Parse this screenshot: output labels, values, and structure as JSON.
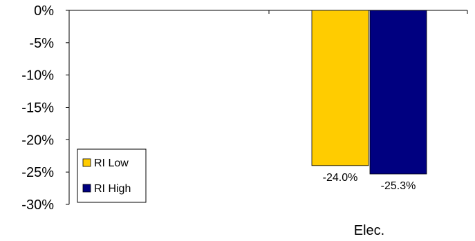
{
  "chart_data": {
    "type": "bar",
    "categories": [
      "Elec."
    ],
    "series": [
      {
        "name": "RI Low",
        "values": [
          -24.0
        ],
        "color": "#ffcc00",
        "data_label": "-24.0%"
      },
      {
        "name": "RI High",
        "values": [
          -25.3
        ],
        "color": "#000080",
        "data_label": "-25.3%"
      }
    ],
    "ylim": [
      -30,
      0
    ],
    "y_ticks": [
      "0%",
      "-5%",
      "-10%",
      "-15%",
      "-20%",
      "-25%",
      "-30%"
    ],
    "y_tick_values": [
      0,
      -5,
      -10,
      -15,
      -20,
      -25,
      -30
    ],
    "grid": false,
    "legend_position": "bottom-left",
    "title": "",
    "xlabel": "",
    "ylabel": ""
  }
}
